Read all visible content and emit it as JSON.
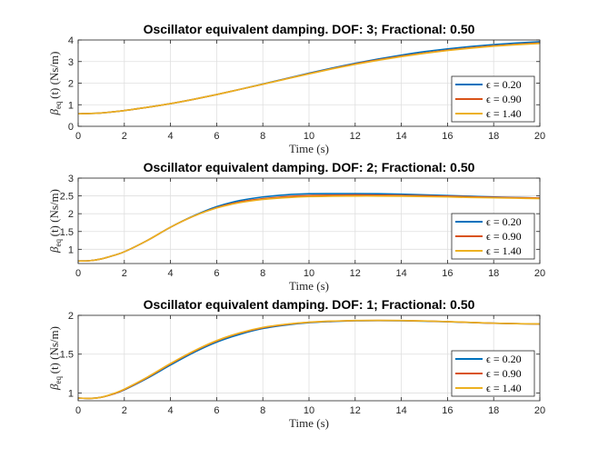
{
  "chart_data": [
    {
      "type": "line",
      "title": "Oscillator equivalent damping. DOF: 3; Fractional: 0.50",
      "xlabel": "Time (s)",
      "ylabel": "β_eq(t) (Ns/m)",
      "ylabel_main": "β",
      "ylabel_sub": "eq",
      "ylabel_rest": "(t) (Ns/m)",
      "xlim": [
        0,
        20
      ],
      "ylim": [
        0,
        4
      ],
      "xticks": [
        0,
        2,
        4,
        6,
        8,
        10,
        12,
        14,
        16,
        18,
        20
      ],
      "yticks": [
        0,
        1,
        2,
        3,
        4
      ],
      "ytick_labels": [
        "0",
        "1",
        "2",
        "3",
        "4"
      ],
      "grid": true,
      "legend_position": "bottom-right",
      "x": [
        0,
        1,
        2,
        3,
        4,
        5,
        6,
        7,
        8,
        9,
        10,
        11,
        12,
        13,
        14,
        15,
        16,
        17,
        18,
        19,
        20
      ],
      "series": [
        {
          "name": "ϵ = 0.20",
          "color": "#0072BD",
          "values": [
            0.58,
            0.62,
            0.73,
            0.88,
            1.05,
            1.25,
            1.47,
            1.71,
            1.96,
            2.21,
            2.46,
            2.7,
            2.92,
            3.12,
            3.3,
            3.46,
            3.59,
            3.7,
            3.79,
            3.86,
            3.92
          ]
        },
        {
          "name": "ϵ = 0.90",
          "color": "#D95319",
          "values": [
            0.58,
            0.62,
            0.73,
            0.88,
            1.05,
            1.25,
            1.47,
            1.71,
            1.95,
            2.2,
            2.44,
            2.67,
            2.89,
            3.08,
            3.25,
            3.4,
            3.53,
            3.64,
            3.73,
            3.8,
            3.86
          ]
        },
        {
          "name": "ϵ = 1.40",
          "color": "#EDB120",
          "values": [
            0.58,
            0.62,
            0.73,
            0.88,
            1.05,
            1.25,
            1.47,
            1.71,
            1.95,
            2.19,
            2.43,
            2.66,
            2.87,
            3.06,
            3.23,
            3.38,
            3.51,
            3.62,
            3.71,
            3.78,
            3.84
          ]
        }
      ]
    },
    {
      "type": "line",
      "title": "Oscillator equivalent damping. DOF: 2; Fractional: 0.50",
      "xlabel": "Time (s)",
      "ylabel": "β_eq(t) (Ns/m)",
      "ylabel_main": "β",
      "ylabel_sub": "eq",
      "ylabel_rest": "(t) (Ns/m)",
      "xlim": [
        0,
        20
      ],
      "ylim": [
        0.6,
        3
      ],
      "xticks": [
        0,
        2,
        4,
        6,
        8,
        10,
        12,
        14,
        16,
        18,
        20
      ],
      "yticks": [
        1,
        1.5,
        2,
        2.5,
        3
      ],
      "ytick_labels": [
        "1",
        "1.5",
        "2",
        "2.5",
        "3"
      ],
      "grid": true,
      "legend_position": "bottom-right",
      "x": [
        0,
        0.5,
        1,
        1.5,
        2,
        3,
        4,
        5,
        6,
        7,
        8,
        9,
        10,
        11,
        12,
        13,
        14,
        15,
        16,
        17,
        18,
        19,
        20
      ],
      "series": [
        {
          "name": "ϵ = 0.20",
          "color": "#0072BD",
          "values": [
            0.67,
            0.68,
            0.73,
            0.82,
            0.93,
            1.25,
            1.62,
            1.94,
            2.2,
            2.37,
            2.47,
            2.53,
            2.56,
            2.565,
            2.565,
            2.56,
            2.55,
            2.53,
            2.51,
            2.49,
            2.47,
            2.455,
            2.44
          ]
        },
        {
          "name": "ϵ = 0.90",
          "color": "#D95319",
          "values": [
            0.67,
            0.68,
            0.73,
            0.82,
            0.93,
            1.25,
            1.62,
            1.93,
            2.17,
            2.33,
            2.42,
            2.48,
            2.51,
            2.52,
            2.525,
            2.52,
            2.515,
            2.505,
            2.49,
            2.475,
            2.46,
            2.45,
            2.44
          ]
        },
        {
          "name": "ϵ = 1.40",
          "color": "#EDB120",
          "values": [
            0.67,
            0.68,
            0.73,
            0.82,
            0.93,
            1.25,
            1.62,
            1.93,
            2.16,
            2.31,
            2.4,
            2.45,
            2.48,
            2.49,
            2.495,
            2.495,
            2.49,
            2.48,
            2.47,
            2.455,
            2.445,
            2.435,
            2.425
          ]
        }
      ]
    },
    {
      "type": "line",
      "title": "Oscillator equivalent damping. DOF: 1; Fractional: 0.50",
      "xlabel": "Time (s)",
      "ylabel": "β_eq(t) (Ns/m)",
      "ylabel_main": "β",
      "ylabel_sub": "eq",
      "ylabel_rest": "(t) (Ns/m)",
      "xlim": [
        0,
        20
      ],
      "ylim": [
        0.9,
        2
      ],
      "xticks": [
        0,
        2,
        4,
        6,
        8,
        10,
        12,
        14,
        16,
        18,
        20
      ],
      "yticks": [
        1,
        1.5,
        2
      ],
      "ytick_labels": [
        "1",
        "1.5",
        "2"
      ],
      "grid": true,
      "legend_position": "bottom-right",
      "x": [
        0,
        0.5,
        1,
        1.5,
        2,
        3,
        4,
        5,
        6,
        7,
        8,
        9,
        10,
        11,
        12,
        13,
        14,
        15,
        16,
        17,
        18,
        19,
        20
      ],
      "series": [
        {
          "name": "ϵ = 0.20",
          "color": "#0072BD",
          "values": [
            0.935,
            0.93,
            0.945,
            0.985,
            1.04,
            1.19,
            1.36,
            1.52,
            1.655,
            1.755,
            1.83,
            1.875,
            1.905,
            1.92,
            1.93,
            1.932,
            1.93,
            1.925,
            1.917,
            1.907,
            1.898,
            1.892,
            1.888
          ]
        },
        {
          "name": "ϵ = 0.90",
          "color": "#D95319",
          "values": [
            0.935,
            0.93,
            0.945,
            0.985,
            1.045,
            1.2,
            1.375,
            1.535,
            1.67,
            1.77,
            1.84,
            1.882,
            1.91,
            1.924,
            1.932,
            1.934,
            1.932,
            1.927,
            1.918,
            1.908,
            1.898,
            1.892,
            1.888
          ]
        },
        {
          "name": "ϵ = 1.40",
          "color": "#EDB120",
          "values": [
            0.935,
            0.93,
            0.945,
            0.99,
            1.05,
            1.205,
            1.38,
            1.54,
            1.675,
            1.775,
            1.845,
            1.886,
            1.912,
            1.926,
            1.933,
            1.935,
            1.933,
            1.928,
            1.919,
            1.909,
            1.899,
            1.893,
            1.889
          ]
        }
      ]
    }
  ]
}
